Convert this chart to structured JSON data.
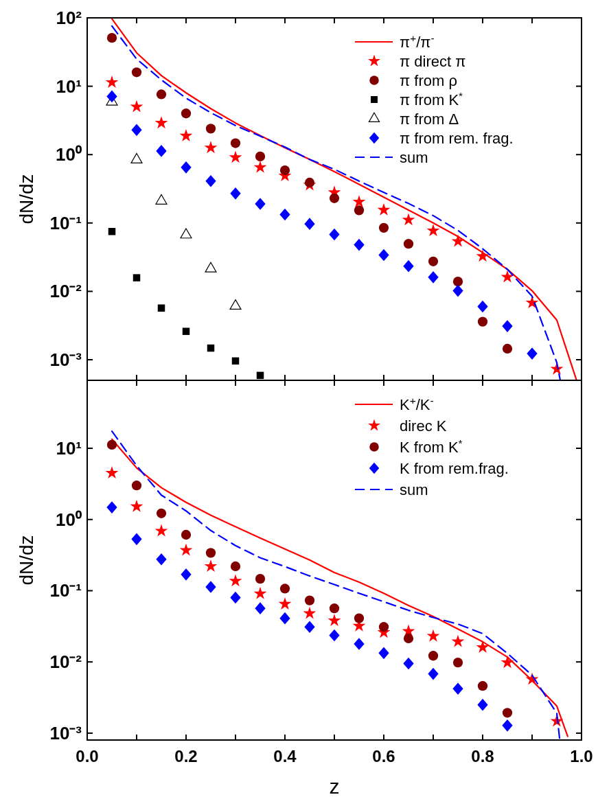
{
  "chart_data": [
    {
      "type": "scatter",
      "ylabel": "dN/dz",
      "log": "y",
      "legend": "top right",
      "tick_labels": "y",
      "xlim": [
        0,
        1
      ],
      "xticks": [
        {
          "value": 0,
          "label": null
        },
        {
          "value": 0.1,
          "label": null
        },
        {
          "value": 0.2,
          "label": null
        },
        {
          "value": 0.3,
          "label": null
        },
        {
          "value": 0.4,
          "label": null
        },
        {
          "value": 0.5,
          "label": null
        },
        {
          "value": 0.6,
          "label": null
        },
        {
          "value": 0.7,
          "label": null
        },
        {
          "value": 0.8,
          "label": null
        },
        {
          "value": 0.9,
          "label": null
        },
        {
          "value": 1,
          "label": null
        }
      ],
      "ylim": [
        0.0005,
        100
      ],
      "yticks": [
        {
          "value": 0.001,
          "label": "10⁻³"
        },
        {
          "value": 0.01,
          "label": "10⁻²"
        },
        {
          "value": 0.1,
          "label": "10⁻¹"
        },
        {
          "value": 1,
          "label": "10⁰"
        },
        {
          "value": 10,
          "label": "10¹"
        },
        {
          "value": 100,
          "label": "10²"
        }
      ],
      "series": [
        {
          "name": "π$^{+}$/π$^{-}$",
          "type": "line",
          "line_style": "solid",
          "marker": "none",
          "color": "#ff0000",
          "x": [
            0.05,
            0.1,
            0.15,
            0.2,
            0.25,
            0.3,
            0.35,
            0.4,
            0.45,
            0.5,
            0.6,
            0.7,
            0.75,
            0.8,
            0.85,
            0.9,
            0.95,
            0.99
          ],
          "values": [
            97,
            30.8,
            14.3,
            8.0,
            4.7,
            2.9,
            1.9,
            1.26,
            0.85,
            0.565,
            0.238,
            0.1,
            0.0635,
            0.037,
            0.021,
            0.0102,
            0.0038,
            0.0005
          ]
        },
        {
          "name": "π direct π",
          "marker": "star",
          "color": "#ff0000",
          "x": [
            0.05,
            0.1,
            0.15,
            0.2,
            0.25,
            0.3,
            0.35,
            0.4,
            0.45,
            0.5,
            0.55,
            0.6,
            0.65,
            0.7,
            0.75,
            0.8,
            0.85,
            0.9,
            0.95
          ],
          "values": [
            11.4,
            5.0,
            2.9,
            1.88,
            1.26,
            0.91,
            0.65,
            0.49,
            0.36,
            0.28,
            0.203,
            0.155,
            0.111,
            0.077,
            0.054,
            0.0326,
            0.0162,
            0.0068,
            0.00073
          ]
        },
        {
          "name": "π from ρ",
          "marker": "circle",
          "color": "#800000",
          "x": [
            0.05,
            0.1,
            0.15,
            0.2,
            0.25,
            0.3,
            0.35,
            0.4,
            0.45,
            0.5,
            0.55,
            0.6,
            0.65,
            0.7,
            0.75,
            0.8,
            0.85
          ],
          "values": [
            51,
            16,
            7.6,
            4.0,
            2.4,
            1.47,
            0.94,
            0.59,
            0.39,
            0.23,
            0.153,
            0.085,
            0.0495,
            0.0274,
            0.0139,
            0.0036,
            0.00145
          ]
        },
        {
          "name": "π from K$^{*}$",
          "marker": "square",
          "color": "#000000",
          "x": [
            0.05,
            0.1,
            0.15,
            0.2,
            0.25,
            0.3,
            0.35
          ],
          "values": [
            0.075,
            0.0158,
            0.0057,
            0.0026,
            0.00148,
            0.00096,
            0.00059
          ]
        },
        {
          "name": "π from Δ",
          "marker": "triangle",
          "color": "#000000",
          "x": [
            0.05,
            0.1,
            0.15,
            0.2,
            0.25,
            0.3
          ],
          "values": [
            5.9,
            0.84,
            0.21,
            0.067,
            0.0214,
            0.0061
          ]
        },
        {
          "name": "π from rem. frag.",
          "marker": "diamond",
          "color": "#0000ff",
          "x": [
            0.05,
            0.1,
            0.15,
            0.2,
            0.25,
            0.3,
            0.35,
            0.4,
            0.45,
            0.5,
            0.55,
            0.6,
            0.65,
            0.7,
            0.75,
            0.8,
            0.85,
            0.9
          ],
          "values": [
            7.1,
            2.29,
            1.13,
            0.65,
            0.41,
            0.27,
            0.19,
            0.133,
            0.097,
            0.068,
            0.048,
            0.034,
            0.0234,
            0.0161,
            0.0102,
            0.006,
            0.0031,
            0.00123
          ]
        },
        {
          "name": "sum",
          "type": "line",
          "line_style": "dashed",
          "marker": "none",
          "color": "#0000ff",
          "x": [
            0.05,
            0.1,
            0.15,
            0.2,
            0.25,
            0.3,
            0.35,
            0.4,
            0.45,
            0.5,
            0.55,
            0.6,
            0.65,
            0.7,
            0.75,
            0.8,
            0.85,
            0.9,
            0.95,
            0.957
          ],
          "values": [
            76,
            25,
            12.4,
            6.7,
            4.1,
            2.66,
            1.86,
            1.29,
            0.85,
            0.61,
            0.41,
            0.28,
            0.193,
            0.128,
            0.078,
            0.042,
            0.021,
            0.0085,
            0.00091,
            0.0005
          ]
        }
      ]
    },
    {
      "type": "scatter",
      "xlabel": "z",
      "ylabel": "dN/dz",
      "log": "y",
      "legend": "top right",
      "xlim": [
        0,
        1
      ],
      "xticks": [
        {
          "value": 0,
          "label": "0.0"
        },
        {
          "value": 0.1,
          "label": null
        },
        {
          "value": 0.2,
          "label": "0.2"
        },
        {
          "value": 0.3,
          "label": null
        },
        {
          "value": 0.4,
          "label": "0.4"
        },
        {
          "value": 0.5,
          "label": null
        },
        {
          "value": 0.6,
          "label": "0.6"
        },
        {
          "value": 0.7,
          "label": null
        },
        {
          "value": 0.8,
          "label": "0.8"
        },
        {
          "value": 0.9,
          "label": null
        },
        {
          "value": 1,
          "label": "1.0"
        }
      ],
      "ylim": [
        0.0008,
        90
      ],
      "yticks": [
        {
          "value": 0.001,
          "label": "10⁻³"
        },
        {
          "value": 0.01,
          "label": "10⁻²"
        },
        {
          "value": 0.1,
          "label": "10⁻¹"
        },
        {
          "value": 1,
          "label": "10⁰"
        },
        {
          "value": 10,
          "label": "10¹"
        }
      ],
      "series": [
        {
          "name": "K$^{+}$/K$^{-}$",
          "type": "line",
          "line_style": "solid",
          "marker": "none",
          "color": "#ff0000",
          "x": [
            0.05,
            0.1,
            0.15,
            0.2,
            0.25,
            0.3,
            0.35,
            0.4,
            0.45,
            0.5,
            0.55,
            0.6,
            0.65,
            0.7,
            0.75,
            0.8,
            0.85,
            0.9,
            0.95,
            0.972
          ],
          "values": [
            13.4,
            5.3,
            2.8,
            1.74,
            1.15,
            0.79,
            0.55,
            0.385,
            0.27,
            0.18,
            0.132,
            0.092,
            0.062,
            0.0435,
            0.029,
            0.0192,
            0.0117,
            0.0055,
            0.0024,
            0.0009
          ]
        },
        {
          "name": "direc K",
          "marker": "star",
          "color": "#ff0000",
          "x": [
            0.05,
            0.1,
            0.15,
            0.2,
            0.25,
            0.3,
            0.35,
            0.4,
            0.45,
            0.5,
            0.55,
            0.6,
            0.65,
            0.7,
            0.75,
            0.8,
            0.85,
            0.9,
            0.95
          ],
          "values": [
            4.5,
            1.52,
            0.69,
            0.37,
            0.22,
            0.137,
            0.091,
            0.065,
            0.048,
            0.038,
            0.032,
            0.026,
            0.027,
            0.023,
            0.0193,
            0.016,
            0.0098,
            0.0057,
            0.00147
          ]
        },
        {
          "name": "K from K$^{*}$",
          "marker": "circle",
          "color": "#800000",
          "x": [
            0.05,
            0.1,
            0.15,
            0.2,
            0.25,
            0.3,
            0.35,
            0.4,
            0.45,
            0.5,
            0.55,
            0.6,
            0.65,
            0.7,
            0.75,
            0.8,
            0.85
          ],
          "values": [
            11.2,
            3.0,
            1.22,
            0.61,
            0.34,
            0.22,
            0.147,
            0.107,
            0.073,
            0.0565,
            0.041,
            0.031,
            0.0214,
            0.0122,
            0.0098,
            0.0046,
            0.00193
          ]
        },
        {
          "name": "K from rem.frag.",
          "marker": "diamond",
          "color": "#0000ff",
          "x": [
            0.05,
            0.1,
            0.15,
            0.2,
            0.25,
            0.3,
            0.35,
            0.4,
            0.45,
            0.5,
            0.55,
            0.6,
            0.65,
            0.7,
            0.75,
            0.8,
            0.85
          ],
          "values": [
            1.48,
            0.53,
            0.276,
            0.169,
            0.113,
            0.08,
            0.0565,
            0.041,
            0.031,
            0.0236,
            0.0179,
            0.0133,
            0.0095,
            0.0068,
            0.0042,
            0.0025,
            0.00128
          ]
        },
        {
          "name": "sum",
          "type": "line",
          "line_style": "dashed",
          "marker": "none",
          "color": "#0000ff",
          "x": [
            0.05,
            0.1,
            0.15,
            0.2,
            0.25,
            0.3,
            0.35,
            0.4,
            0.45,
            0.5,
            0.55,
            0.6,
            0.65,
            0.7,
            0.75,
            0.8,
            0.85,
            0.9,
            0.95,
            0.956
          ],
          "values": [
            17.4,
            5.7,
            2.2,
            1.32,
            0.7,
            0.43,
            0.29,
            0.218,
            0.161,
            0.122,
            0.092,
            0.07,
            0.053,
            0.042,
            0.034,
            0.025,
            0.0132,
            0.0065,
            0.0019,
            0.0008
          ]
        }
      ]
    }
  ]
}
